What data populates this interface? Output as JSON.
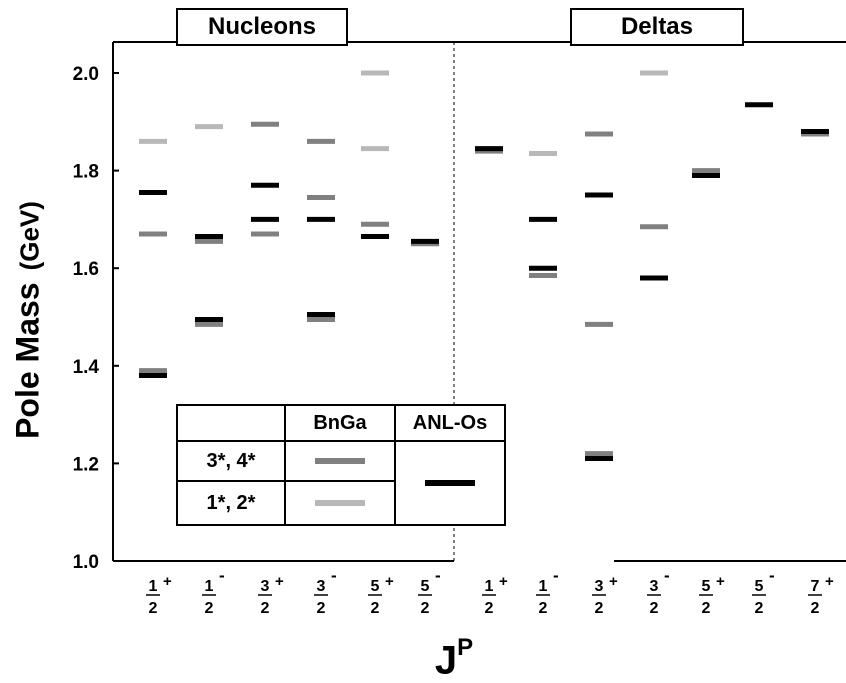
{
  "chart_data": {
    "type": "scatter",
    "panels": [
      {
        "name": "Nucleons",
        "categories": [
          "1/2+",
          "1/2-",
          "3/2+",
          "3/2-",
          "5/2+",
          "5/2-"
        ]
      },
      {
        "name": "Deltas",
        "categories": [
          "1/2+",
          "1/2-",
          "3/2+",
          "3/2-",
          "5/2+",
          "5/2-",
          "7/2+"
        ]
      }
    ],
    "ylabel": "Pole Mass",
    "yunit": "(GeV)",
    "xlabel": "J",
    "xlabel_sup": "P",
    "ylim": [
      1.0,
      2.06
    ],
    "yticks": [
      "1.0",
      "1.2",
      "1.4",
      "1.6",
      "1.8",
      "2.0"
    ],
    "series": [
      {
        "name": "BnGa 3*, 4*",
        "color": "#808080",
        "points": [
          [
            "Nucleons",
            "1/2+",
            1.67
          ],
          [
            "Nucleons",
            "1/2+",
            1.39
          ],
          [
            "Nucleons",
            "1/2-",
            1.655
          ],
          [
            "Nucleons",
            "1/2-",
            1.485
          ],
          [
            "Nucleons",
            "3/2+",
            1.895
          ],
          [
            "Nucleons",
            "3/2+",
            1.67
          ],
          [
            "Nucleons",
            "3/2-",
            1.86
          ],
          [
            "Nucleons",
            "3/2-",
            1.745
          ],
          [
            "Nucleons",
            "3/2-",
            1.495
          ],
          [
            "Nucleons",
            "5/2+",
            1.69
          ],
          [
            "Nucleons",
            "5/2-",
            1.65
          ],
          [
            "Deltas",
            "1/2+",
            1.84
          ],
          [
            "Deltas",
            "1/2-",
            1.585
          ],
          [
            "Deltas",
            "3/2+",
            1.875
          ],
          [
            "Deltas",
            "3/2+",
            1.485
          ],
          [
            "Deltas",
            "3/2+",
            1.22
          ],
          [
            "Deltas",
            "3/2-",
            1.685
          ],
          [
            "Deltas",
            "5/2+",
            1.8
          ],
          [
            "Deltas",
            "7/2+",
            1.875
          ]
        ]
      },
      {
        "name": "BnGa 1*, 2*",
        "color": "#b8b8b8",
        "points": [
          [
            "Nucleons",
            "1/2+",
            1.86
          ],
          [
            "Nucleons",
            "1/2-",
            1.89
          ],
          [
            "Nucleons",
            "5/2+",
            2.0
          ],
          [
            "Nucleons",
            "5/2+",
            1.845
          ],
          [
            "Deltas",
            "1/2-",
            1.835
          ],
          [
            "Deltas",
            "3/2-",
            2.0
          ]
        ]
      },
      {
        "name": "ANL-Os",
        "color": "#000000",
        "points": [
          [
            "Nucleons",
            "1/2+",
            1.755
          ],
          [
            "Nucleons",
            "1/2+",
            1.38
          ],
          [
            "Nucleons",
            "1/2-",
            1.665
          ],
          [
            "Nucleons",
            "1/2-",
            1.495
          ],
          [
            "Nucleons",
            "3/2+",
            1.77
          ],
          [
            "Nucleons",
            "3/2+",
            1.7
          ],
          [
            "Nucleons",
            "3/2-",
            1.7
          ],
          [
            "Nucleons",
            "3/2-",
            1.505
          ],
          [
            "Nucleons",
            "5/2+",
            1.665
          ],
          [
            "Nucleons",
            "5/2-",
            1.655
          ],
          [
            "Deltas",
            "1/2+",
            1.845
          ],
          [
            "Deltas",
            "1/2-",
            1.7
          ],
          [
            "Deltas",
            "1/2-",
            1.6
          ],
          [
            "Deltas",
            "3/2+",
            1.75
          ],
          [
            "Deltas",
            "3/2+",
            1.21
          ],
          [
            "Deltas",
            "3/2-",
            1.58
          ],
          [
            "Deltas",
            "5/2+",
            1.79
          ],
          [
            "Deltas",
            "5/2-",
            1.935
          ],
          [
            "Deltas",
            "7/2+",
            1.88
          ]
        ]
      }
    ]
  },
  "legend": {
    "col_bnga": "BnGa",
    "col_anl": "ANL-Os",
    "row1": "3*, 4*",
    "row2": "1*, 2*",
    "color_34": "#808080",
    "color_12": "#b8b8b8",
    "color_anl": "#000000"
  }
}
